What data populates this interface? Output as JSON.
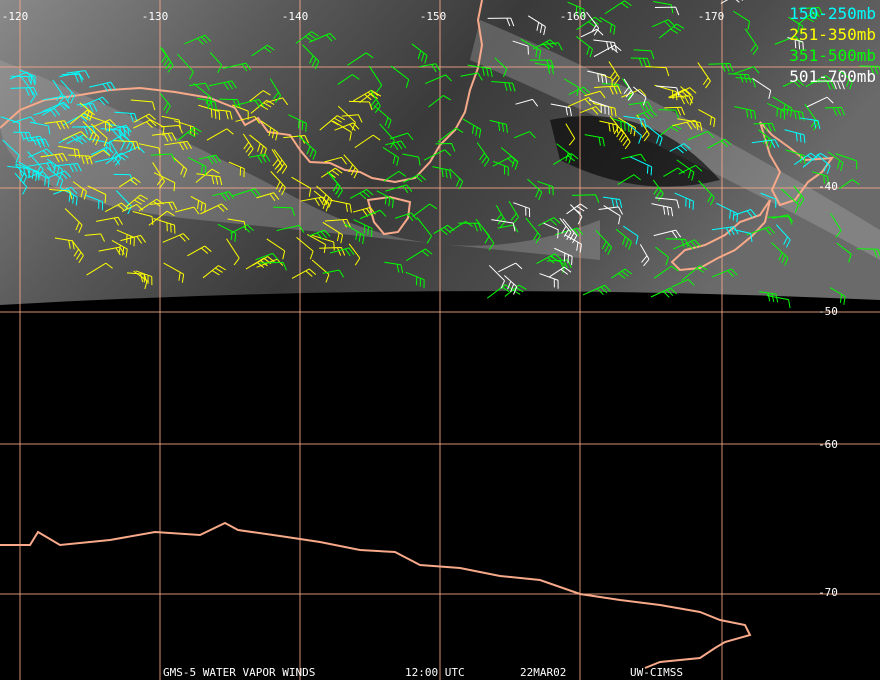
{
  "map": {
    "longitude_labels": [
      "-120",
      "-130",
      "-140",
      "-150",
      "-160",
      "-170"
    ],
    "latitude_labels": [
      "-40",
      "-50",
      "-60",
      "-70"
    ],
    "legend": [
      {
        "label": "150-250mb",
        "color": "#00ffff"
      },
      {
        "label": "251-350mb",
        "color": "#ffff00"
      },
      {
        "label": "351-500mb",
        "color": "#00ff00"
      },
      {
        "label": "501-700mb",
        "color": "#ffffff"
      }
    ],
    "footer": [
      "GMS-5 WATER VAPOR WINDS",
      "12:00 UTC",
      "22MAR02",
      "UW-CIMSS"
    ]
  }
}
